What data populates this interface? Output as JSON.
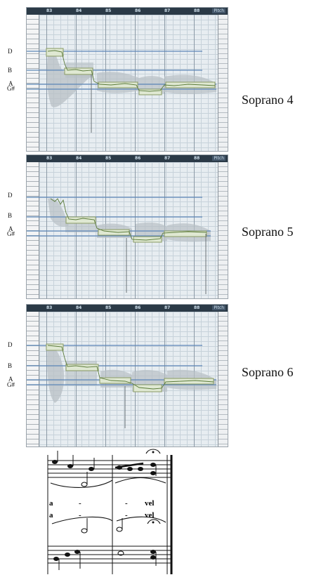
{
  "ruler_numbers": [
    "83",
    "84",
    "85",
    "86",
    "87",
    "88"
  ],
  "badge": "Pitch",
  "note_labels": {
    "d": "D",
    "b": "B",
    "a": "A",
    "gsharp": "G#"
  },
  "singers": [
    "Soprano 4",
    "Soprano 5",
    "Soprano 6"
  ],
  "score": {
    "lyrics_row1": [
      "a",
      "-",
      "-",
      "vel"
    ],
    "lyrics_row2": [
      "a",
      "-",
      "-",
      "vel"
    ]
  },
  "colors": {
    "pitch_line": "#5c86b8",
    "segment_fill": "#dfe8d2",
    "segment_border": "#8a9a64",
    "blob": "#b8bfc4"
  }
}
